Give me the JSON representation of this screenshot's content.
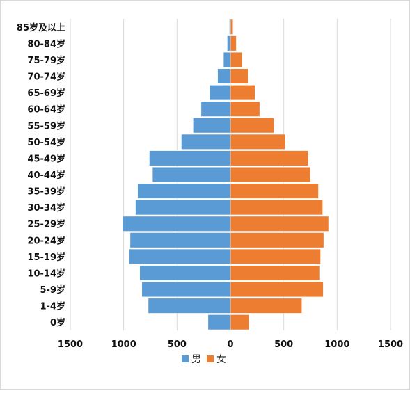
{
  "chart_data": {
    "type": "bar",
    "orientation": "horizontal",
    "subtype": "population-pyramid",
    "title": "",
    "xlabel": "",
    "ylabel": "",
    "xlim": [
      -1500,
      1500
    ],
    "x_tick_values": [
      -1500,
      -1000,
      -500,
      0,
      500,
      1000,
      1500
    ],
    "x_tick_labels": [
      "1500",
      "1000",
      "500",
      "0",
      "500",
      "1000",
      "1500"
    ],
    "grid": "vertical",
    "legend_position": "bottom",
    "categories": [
      "0岁",
      "1-4岁",
      "5-9岁",
      "10-14岁",
      "15-19岁",
      "20-24岁",
      "25-29岁",
      "30-34岁",
      "35-39岁",
      "40-44岁",
      "45-49岁",
      "50-54岁",
      "55-59岁",
      "60-64岁",
      "65-69岁",
      "70-74岁",
      "75-79岁",
      "80-84岁",
      "85岁及以上"
    ],
    "series": [
      {
        "name": "男",
        "color": "#5b9bd5",
        "side": "left",
        "values": [
          210,
          770,
          830,
          850,
          950,
          940,
          1010,
          890,
          870,
          730,
          760,
          460,
          350,
          275,
          195,
          120,
          65,
          30,
          10
        ]
      },
      {
        "name": "女",
        "color": "#ed7d31",
        "side": "right",
        "values": [
          175,
          670,
          870,
          835,
          845,
          875,
          920,
          865,
          825,
          750,
          730,
          515,
          410,
          275,
          230,
          165,
          110,
          55,
          25
        ]
      }
    ]
  }
}
